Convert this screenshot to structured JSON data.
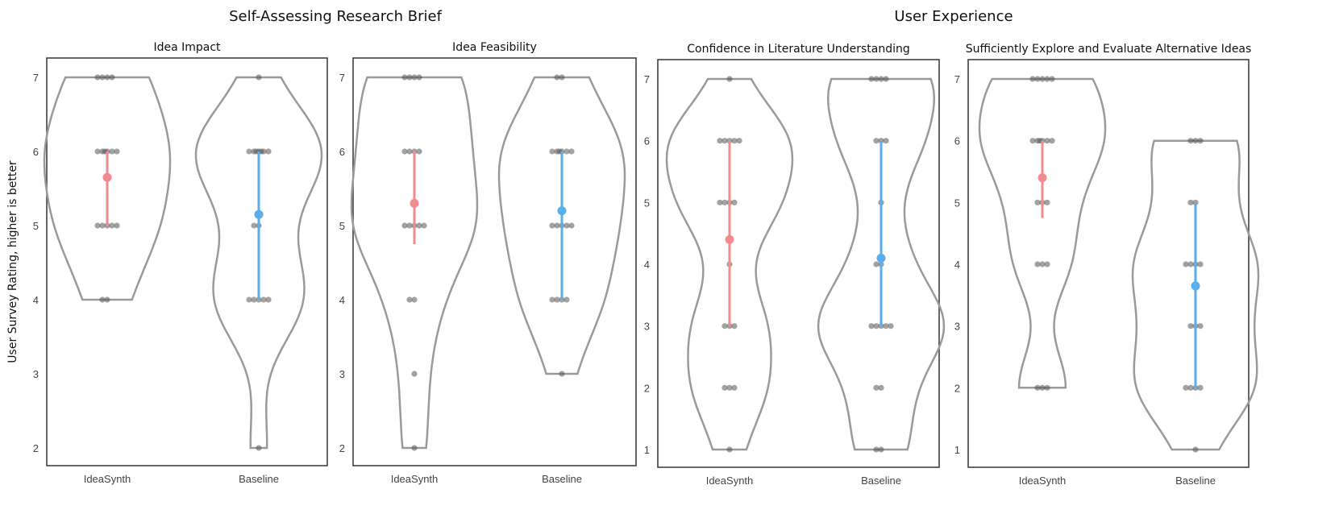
{
  "figure": {
    "group_titles": [
      "Self-Assessing Research Brief",
      "User Experience"
    ],
    "ylabel": "User Survey Rating, higher is better"
  },
  "colors": {
    "violin_outline": "#9a9a9a",
    "frame": "#333333",
    "point": "#555555",
    "IdeaSynth": "#f28b8f",
    "Baseline": "#5aaeea"
  },
  "chart_data": [
    {
      "type": "violin",
      "title": "Idea Impact",
      "group": "Self-Assessing Research Brief",
      "categories": [
        "IdeaSynth",
        "Baseline"
      ],
      "ylim": [
        2,
        7
      ],
      "yticks": [
        2,
        3,
        4,
        5,
        6,
        7
      ],
      "series": [
        {
          "category": "IdeaSynth",
          "points": [
            7,
            7,
            7,
            7,
            6,
            6,
            6,
            6,
            6,
            6,
            5,
            5,
            5,
            5,
            5,
            4,
            4
          ],
          "mean": 5.65,
          "ci": [
            5.0,
            6.0
          ]
        },
        {
          "category": "Baseline",
          "points": [
            7,
            6,
            6,
            6,
            6,
            6,
            6,
            6,
            5,
            5,
            4,
            4,
            4,
            4,
            4,
            2
          ],
          "mean": 5.15,
          "ci": [
            4.0,
            6.0
          ]
        }
      ]
    },
    {
      "type": "violin",
      "title": "Idea Feasibility",
      "group": "Self-Assessing Research Brief",
      "categories": [
        "IdeaSynth",
        "Baseline"
      ],
      "ylim": [
        2,
        7
      ],
      "yticks": [
        2,
        3,
        4,
        5,
        6,
        7
      ],
      "series": [
        {
          "category": "IdeaSynth",
          "points": [
            7,
            7,
            7,
            7,
            6,
            6,
            6,
            6,
            5,
            5,
            5,
            5,
            5,
            4,
            4,
            3,
            2
          ],
          "mean": 5.3,
          "ci": [
            4.75,
            6.0
          ]
        },
        {
          "category": "Baseline",
          "points": [
            7,
            7,
            6,
            6,
            6,
            6,
            6,
            6,
            5,
            5,
            5,
            5,
            5,
            4,
            4,
            4,
            4,
            3
          ],
          "mean": 5.2,
          "ci": [
            4.0,
            6.0
          ]
        }
      ]
    },
    {
      "type": "violin",
      "title": "Confidence in Literature Understanding",
      "group": "User Experience",
      "categories": [
        "IdeaSynth",
        "Baseline"
      ],
      "ylim": [
        1,
        7
      ],
      "yticks": [
        1,
        2,
        3,
        4,
        5,
        6,
        7
      ],
      "series": [
        {
          "category": "IdeaSynth",
          "points": [
            7,
            6,
            6,
            6,
            6,
            6,
            5,
            5,
            5,
            5,
            4,
            3,
            3,
            3,
            2,
            2,
            2,
            1
          ],
          "mean": 4.4,
          "ci": [
            3.0,
            6.0
          ]
        },
        {
          "category": "Baseline",
          "points": [
            7,
            7,
            7,
            7,
            6,
            6,
            6,
            5,
            4,
            4,
            3,
            3,
            3,
            3,
            3,
            2,
            2,
            1,
            1
          ],
          "mean": 4.1,
          "ci": [
            3.0,
            6.0
          ]
        }
      ]
    },
    {
      "type": "violin",
      "title": "Sufficiently Explore and Evaluate Alternative Ideas",
      "group": "User Experience",
      "categories": [
        "IdeaSynth",
        "Baseline"
      ],
      "ylim": [
        1,
        7
      ],
      "yticks": [
        1,
        2,
        3,
        4,
        5,
        6,
        7
      ],
      "series": [
        {
          "category": "IdeaSynth",
          "points": [
            7,
            7,
            7,
            7,
            7,
            6,
            6,
            6,
            6,
            6,
            6,
            5,
            5,
            5,
            4,
            4,
            4,
            2,
            2,
            2
          ],
          "mean": 5.4,
          "ci": [
            4.75,
            6.0
          ]
        },
        {
          "category": "Baseline",
          "points": [
            6,
            6,
            6,
            5,
            5,
            4,
            4,
            4,
            4,
            3,
            3,
            3,
            2,
            2,
            2,
            2,
            1
          ],
          "mean": 3.65,
          "ci": [
            2.0,
            5.0
          ]
        }
      ]
    }
  ]
}
